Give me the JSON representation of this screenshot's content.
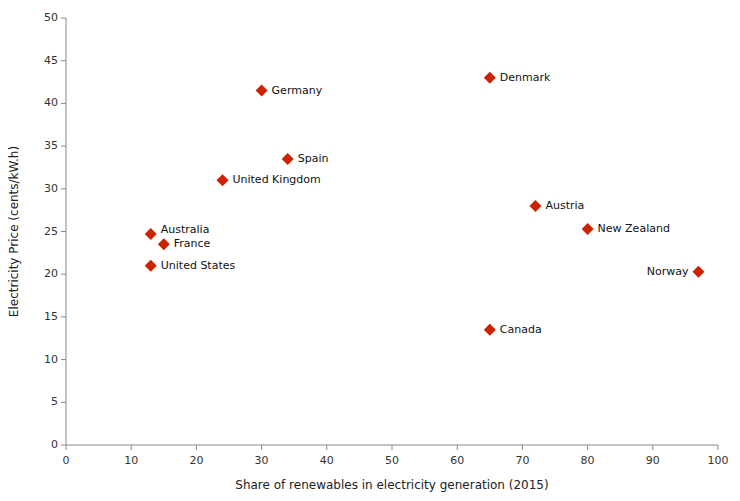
{
  "chart_data": {
    "type": "scatter",
    "xlabel": "Share of renewables in electricity generation (2015)",
    "ylabel": "Electricity Price (cents/kW.h)",
    "xlim": [
      0,
      100
    ],
    "ylim": [
      0,
      50
    ],
    "xticks": [
      0,
      10,
      20,
      30,
      40,
      50,
      60,
      70,
      80,
      90,
      100
    ],
    "yticks": [
      0,
      5,
      10,
      15,
      20,
      25,
      30,
      35,
      40,
      45,
      50
    ],
    "color": "#CC2200",
    "marker": "diamond",
    "grid": false,
    "x": [
      30,
      65,
      34,
      24,
      72,
      80,
      13,
      15,
      13,
      65,
      97
    ],
    "values": [
      41.5,
      43.0,
      33.5,
      31.0,
      28.0,
      25.3,
      24.7,
      23.5,
      21.0,
      13.5,
      20.3
    ],
    "annotations": [
      "Germany",
      "Denmark",
      "Spain",
      "United Kingdom",
      "Austria",
      "New Zealand",
      "Australia",
      "France",
      "United States",
      "Canada",
      "Norway"
    ]
  }
}
